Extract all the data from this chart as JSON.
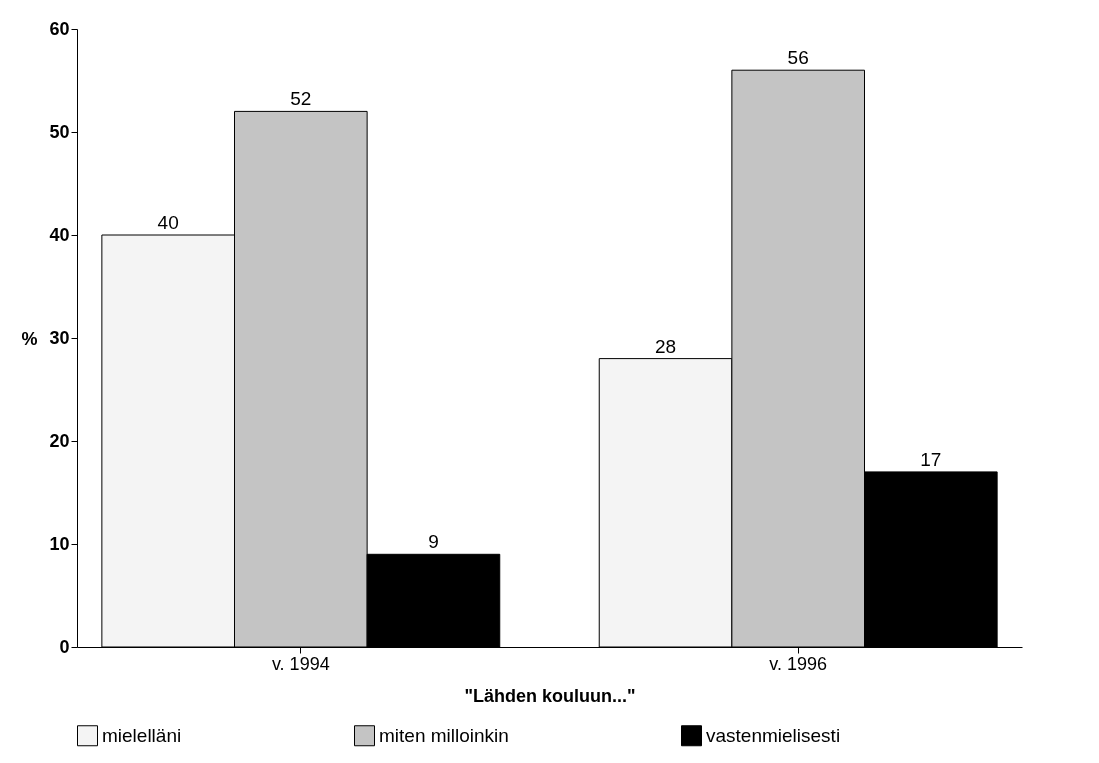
{
  "chart_data": {
    "type": "bar",
    "xlabel": "\"Lähden kouluun...\"",
    "ylabel": "%",
    "categories": [
      "v. 1994",
      "v. 1996"
    ],
    "series": [
      {
        "name": "mielelläni",
        "color": "#f4f4f4",
        "values": [
          40,
          28
        ]
      },
      {
        "name": "miten milloinkin",
        "color": "#c4c4c4",
        "values": [
          52,
          56
        ]
      },
      {
        "name": "vastenmielisesti",
        "color": "#000000",
        "values": [
          9,
          17
        ]
      }
    ],
    "ylim": [
      0,
      60
    ],
    "yticks": [
      0,
      10,
      20,
      30,
      40,
      50,
      60
    ],
    "grid": false,
    "legend": "bottom",
    "data_labels": true
  }
}
